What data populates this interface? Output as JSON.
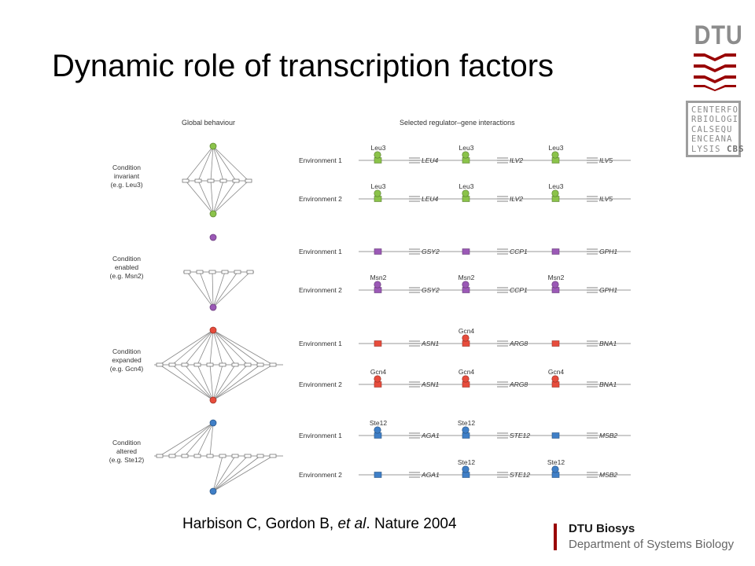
{
  "title": "Dynamic role of transcription factors",
  "logo": {
    "text": "DTU",
    "stripe_color": "#990000",
    "text_color": "#8c8c8c"
  },
  "cbs_logo": {
    "lines": [
      "CENTERFO",
      "RBIOLOGI",
      "CALSEQU",
      "ENCEANA",
      "LYSIS"
    ],
    "bold": "CBS"
  },
  "figure": {
    "left_header": "Global behaviour",
    "right_header": "Selected regulator–gene interactions",
    "panels": [
      {
        "name": "leu3",
        "color": "#8bc34a",
        "condition": [
          "Condition",
          "invariant",
          "(e.g. Leu3)"
        ],
        "rows": [
          {
            "env": "Environment 1",
            "groups": [
              {
                "tf": "Leu3",
                "gene": "LEU4"
              },
              {
                "tf": "Leu3",
                "gene": "ILV2"
              },
              {
                "tf": "Leu3",
                "gene": "ILV5"
              }
            ]
          },
          {
            "env": "Environment 2",
            "groups": [
              {
                "tf": "Leu3",
                "gene": "LEU4"
              },
              {
                "tf": "Leu3",
                "gene": "ILV2"
              },
              {
                "tf": "Leu3",
                "gene": "ILV5"
              }
            ]
          }
        ]
      },
      {
        "name": "msn2",
        "color": "#9b59b6",
        "condition": [
          "Condition",
          "enabled",
          "(e.g. Msn2)"
        ],
        "rows": [
          {
            "env": "Environment 1",
            "groups": [
              {
                "tf": "",
                "gene": "GSY2"
              },
              {
                "tf": "",
                "gene": "CCP1"
              },
              {
                "tf": "",
                "gene": "GPH1"
              }
            ]
          },
          {
            "env": "Environment 2",
            "groups": [
              {
                "tf": "Msn2",
                "gene": "GSY2"
              },
              {
                "tf": "Msn2",
                "gene": "CCP1"
              },
              {
                "tf": "Msn2",
                "gene": "GPH1"
              }
            ]
          }
        ]
      },
      {
        "name": "gcn4",
        "color": "#e74c3c",
        "condition": [
          "Condition",
          "expanded",
          "(e.g. Gcn4)"
        ],
        "rows": [
          {
            "env": "Environment 1",
            "groups": [
              {
                "tf": "",
                "gene": "ASN1"
              },
              {
                "tf": "Gcn4",
                "gene": "ARG8"
              },
              {
                "tf": "",
                "gene": "BNA1"
              }
            ]
          },
          {
            "env": "Environment 2",
            "groups": [
              {
                "tf": "Gcn4",
                "gene": "ASN1"
              },
              {
                "tf": "Gcn4",
                "gene": "ARG8"
              },
              {
                "tf": "Gcn4",
                "gene": "BNA1"
              }
            ]
          }
        ]
      },
      {
        "name": "ste12",
        "color": "#3f7fc7",
        "condition": [
          "Condition",
          "altered",
          "(e.g. Ste12)"
        ],
        "rows": [
          {
            "env": "Environment 1",
            "groups": [
              {
                "tf": "Ste12",
                "gene": "AGA1"
              },
              {
                "tf": "Ste12",
                "gene": "STE12"
              },
              {
                "tf": "",
                "gene": "MSB2"
              }
            ]
          },
          {
            "env": "Environment 2",
            "groups": [
              {
                "tf": "",
                "gene": "AGA1"
              },
              {
                "tf": "Ste12",
                "gene": "STE12"
              },
              {
                "tf": "Ste12",
                "gene": "MSB2"
              }
            ]
          }
        ]
      }
    ]
  },
  "citation": {
    "authors": "Harbison C, Gordon B, ",
    "etal": "et al",
    "journal": ". Nature 2004"
  },
  "footer": {
    "name": "DTU Biosys",
    "department": "Department of Systems Biology",
    "bar_color": "#990000"
  }
}
